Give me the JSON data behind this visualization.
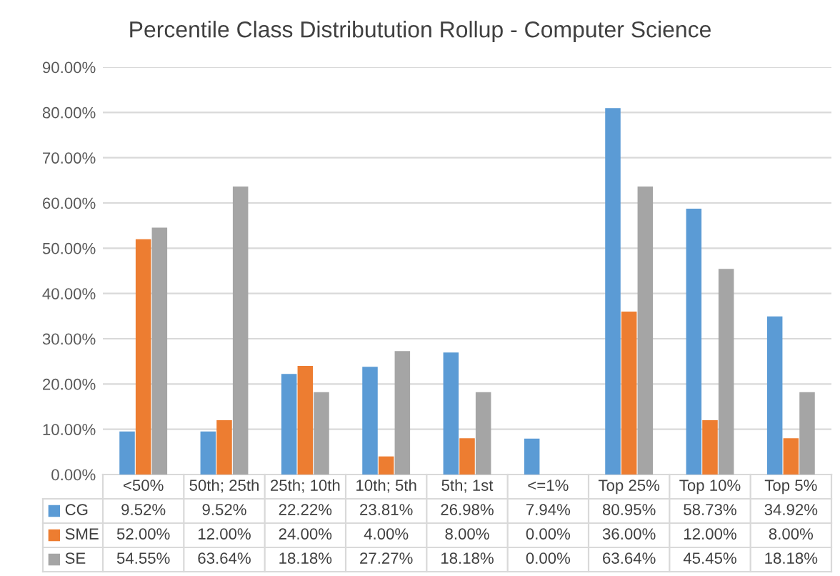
{
  "chart_data": {
    "type": "bar",
    "title": "Percentile Class Distributution Rollup - Computer Science",
    "categories": [
      "<50%",
      "50th; 25th",
      "25th; 10th",
      "10th; 5th",
      "5th; 1st",
      "<=1%",
      "Top 25%",
      "Top 10%",
      "Top 5%"
    ],
    "series": [
      {
        "name": "CG",
        "color": "#5b9bd5",
        "values": [
          9.52,
          9.52,
          22.22,
          23.81,
          26.98,
          7.94,
          80.95,
          58.73,
          34.92
        ],
        "value_labels": [
          "9.52%",
          "9.52%",
          "22.22%",
          "23.81%",
          "26.98%",
          "7.94%",
          "80.95%",
          "58.73%",
          "34.92%"
        ]
      },
      {
        "name": "SME",
        "color": "#ed7d31",
        "values": [
          52.0,
          12.0,
          24.0,
          4.0,
          8.0,
          0.0,
          36.0,
          12.0,
          8.0
        ],
        "value_labels": [
          "52.00%",
          "12.00%",
          "24.00%",
          "4.00%",
          "8.00%",
          "0.00%",
          "36.00%",
          "12.00%",
          "8.00%"
        ]
      },
      {
        "name": "SE",
        "color": "#a5a5a5",
        "values": [
          54.55,
          63.64,
          18.18,
          27.27,
          18.18,
          0.0,
          63.64,
          45.45,
          18.18
        ],
        "value_labels": [
          "54.55%",
          "63.64%",
          "18.18%",
          "27.27%",
          "18.18%",
          "0.00%",
          "63.64%",
          "45.45%",
          "18.18%"
        ]
      }
    ],
    "ylim": [
      0,
      90
    ],
    "yticks": [
      {
        "value": 0,
        "label": "0.00%"
      },
      {
        "value": 10,
        "label": "10.00%"
      },
      {
        "value": 20,
        "label": "20.00%"
      },
      {
        "value": 30,
        "label": "30.00%"
      },
      {
        "value": 40,
        "label": "40.00%"
      },
      {
        "value": 50,
        "label": "50.00%"
      },
      {
        "value": 60,
        "label": "60.00%"
      },
      {
        "value": 70,
        "label": "70.00%"
      },
      {
        "value": 80,
        "label": "80.00%"
      },
      {
        "value": 90,
        "label": "90.00%"
      }
    ],
    "grid": "y",
    "legend": "bottom"
  }
}
